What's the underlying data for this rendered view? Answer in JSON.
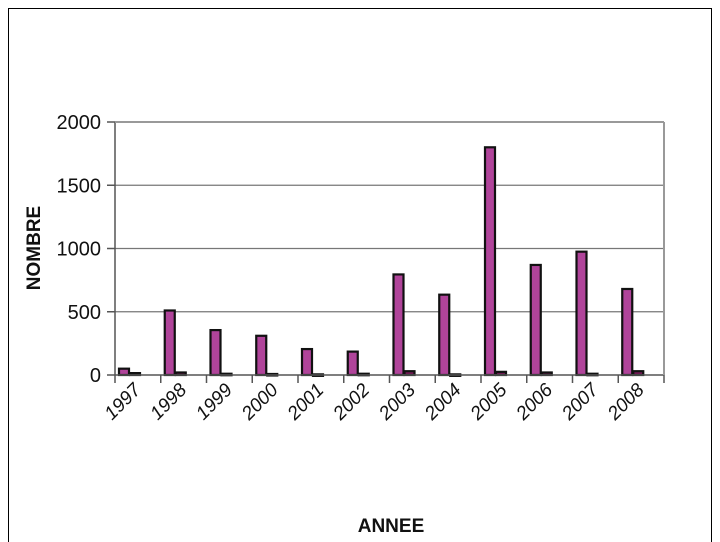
{
  "chart_data": {
    "type": "bar",
    "title": "",
    "xlabel": "ANNEE",
    "ylabel": "NOMBRE",
    "ylim": [
      0,
      2000
    ],
    "yticks": [
      0,
      500,
      1000,
      1500,
      2000
    ],
    "grid": true,
    "categories": [
      "1997",
      "1998",
      "1999",
      "2000",
      "2001",
      "2002",
      "2003",
      "2004",
      "2005",
      "2006",
      "2007",
      "2008"
    ],
    "series": [
      {
        "values": [
          50,
          510,
          355,
          310,
          205,
          185,
          795,
          635,
          1800,
          870,
          975,
          680
        ],
        "color": "#b0449a"
      },
      {
        "values": [
          15,
          20,
          10,
          8,
          5,
          10,
          30,
          5,
          25,
          20,
          10,
          30
        ],
        "color": "#7a1a5a"
      }
    ]
  }
}
